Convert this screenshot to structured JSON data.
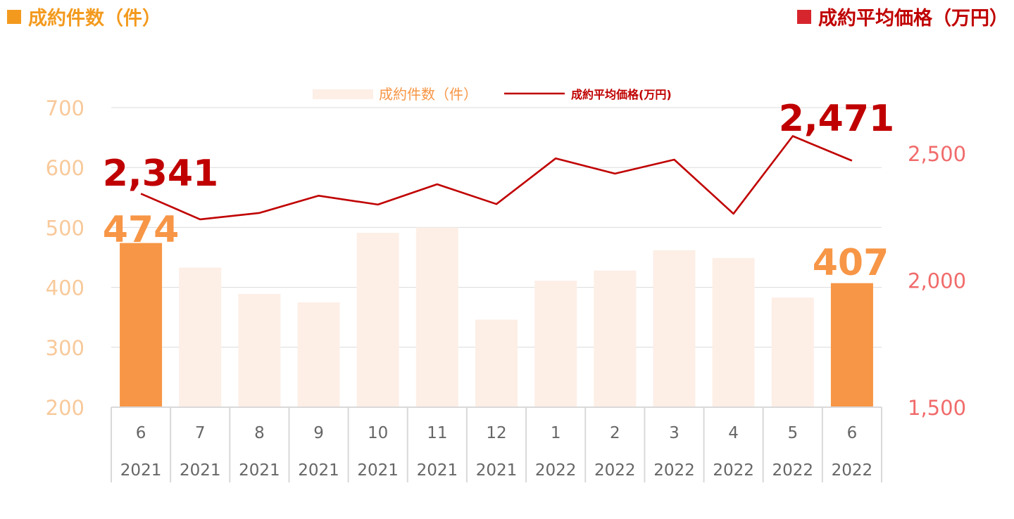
{
  "header": {
    "left_title": "成約件数（件）",
    "right_title": "成約平均価格（万円）"
  },
  "colors": {
    "bar_highlight": "#f79646",
    "bar_normal": "#fdefe6",
    "line": "#c00000",
    "left_axis_text": "#f8c99a",
    "right_axis_text": "#f16b6b",
    "left_header": "#f39a1e",
    "right_header_square": "#d7252d"
  },
  "chart_data": {
    "type": "bar+line",
    "categories": [
      {
        "month": "6",
        "year": "2021"
      },
      {
        "month": "7",
        "year": "2021"
      },
      {
        "month": "8",
        "year": "2021"
      },
      {
        "month": "9",
        "year": "2021"
      },
      {
        "month": "10",
        "year": "2021"
      },
      {
        "month": "11",
        "year": "2021"
      },
      {
        "month": "12",
        "year": "2021"
      },
      {
        "month": "1",
        "year": "2022"
      },
      {
        "month": "2",
        "year": "2022"
      },
      {
        "month": "3",
        "year": "2022"
      },
      {
        "month": "4",
        "year": "2022"
      },
      {
        "month": "5",
        "year": "2022"
      },
      {
        "month": "6",
        "year": "2022"
      }
    ],
    "series": [
      {
        "name": "成約件数（件）",
        "type": "bar",
        "axis": "left",
        "values": [
          474,
          433,
          389,
          375,
          491,
          500,
          346,
          411,
          428,
          462,
          449,
          383,
          407
        ],
        "highlight": [
          true,
          false,
          false,
          false,
          false,
          false,
          false,
          false,
          false,
          false,
          false,
          false,
          true
        ]
      },
      {
        "name": "成約平均価格(万円)",
        "type": "line",
        "axis": "right",
        "values": [
          2341,
          2240,
          2265,
          2333,
          2298,
          2378,
          2300,
          2480,
          2420,
          2475,
          2262,
          2568,
          2471
        ]
      }
    ],
    "left_axis": {
      "min": 200,
      "max": 700,
      "ticks": [
        "200",
        "300",
        "400",
        "500",
        "600",
        "700"
      ],
      "tick_values": [
        200,
        300,
        400,
        500,
        600,
        700
      ]
    },
    "right_axis": {
      "min": 1500,
      "ticks": [
        "1,500",
        "2,000",
        "2,500"
      ],
      "tick_values": [
        1500,
        2000,
        2500
      ]
    },
    "annotations": [
      {
        "text": "2,341",
        "series": 1,
        "index": 0
      },
      {
        "text": "2,471",
        "series": 1,
        "index": 12
      },
      {
        "text": "474",
        "series": 0,
        "index": 0
      },
      {
        "text": "407",
        "series": 0,
        "index": 12
      }
    ],
    "legend_position": "top-center",
    "grid": true
  }
}
